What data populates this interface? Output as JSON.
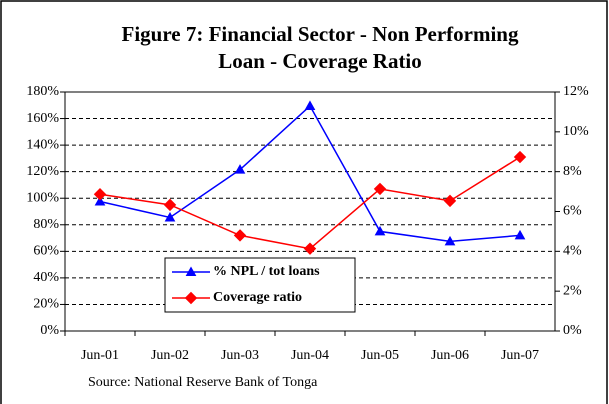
{
  "chart_data": {
    "type": "line",
    "title": "Figure 7: Financial Sector - Non Performing",
    "title_line2": "Loan - Coverage Ratio",
    "source": "Source: National Reserve Bank of Tonga",
    "categories": [
      "Jun-01",
      "Jun-02",
      "Jun-03",
      "Jun-04",
      "Jun-05",
      "Jun-06",
      "Jun-07"
    ],
    "series": [
      {
        "name": "% NPL / tot loans",
        "color": "#0000ff",
        "marker": "triangle",
        "axis": "y2",
        "values": [
          6.5,
          5.7,
          8.1,
          11.3,
          5.0,
          4.5,
          4.8
        ]
      },
      {
        "name": "Coverage ratio",
        "color": "#ff0000",
        "marker": "diamond",
        "axis": "y",
        "values": [
          103,
          95,
          72,
          62,
          107,
          98,
          131
        ]
      }
    ],
    "ylim": [
      0,
      180
    ],
    "yticks": [
      {
        "value": 0,
        "label": "0%"
      },
      {
        "value": 20,
        "label": "20%"
      },
      {
        "value": 40,
        "label": "40%"
      },
      {
        "value": 60,
        "label": "60%"
      },
      {
        "value": 80,
        "label": "80%"
      },
      {
        "value": 100,
        "label": "100%"
      },
      {
        "value": 120,
        "label": "120%"
      },
      {
        "value": 140,
        "label": "140%"
      },
      {
        "value": 160,
        "label": "160%"
      },
      {
        "value": 180,
        "label": "180%"
      }
    ],
    "y2lim": [
      0,
      12
    ],
    "y2ticks": [
      {
        "value": 0,
        "label": "0%"
      },
      {
        "value": 2,
        "label": "2%"
      },
      {
        "value": 4,
        "label": "4%"
      },
      {
        "value": 6,
        "label": "6%"
      },
      {
        "value": 8,
        "label": "8%"
      },
      {
        "value": 10,
        "label": "10%"
      },
      {
        "value": 12,
        "label": "12%"
      }
    ],
    "grid": true
  }
}
